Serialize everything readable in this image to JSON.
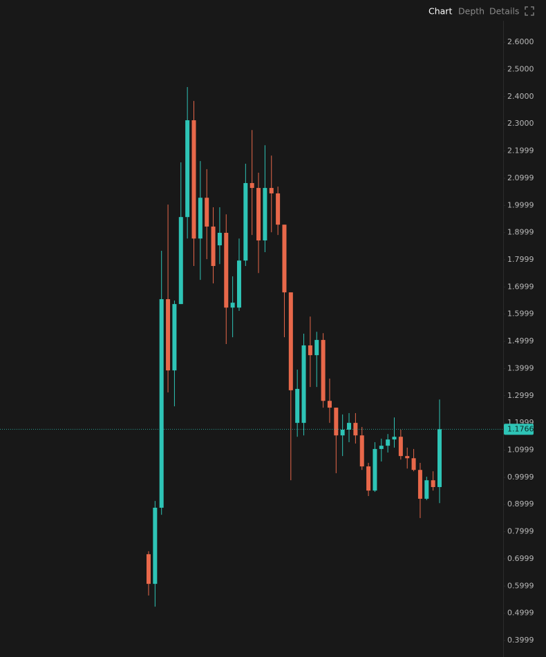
{
  "toolbar": {
    "tabs": [
      "Chart",
      "Depth",
      "Details"
    ]
  },
  "chart_data": {
    "type": "candlestick",
    "categories": [
      null,
      null,
      null,
      null,
      null,
      null,
      null,
      null,
      null,
      null,
      null,
      null,
      null,
      null,
      null,
      null,
      null,
      null,
      null,
      null,
      null,
      null,
      null,
      null,
      null,
      null,
      null,
      null,
      null,
      null,
      null,
      null,
      null,
      null,
      null,
      null,
      null,
      null,
      null,
      null,
      null,
      null,
      null,
      null,
      null,
      null
    ],
    "open": [
      0.717,
      0.608,
      0.888,
      1.655,
      1.393,
      1.637,
      1.957,
      2.313,
      1.878,
      2.028,
      1.922,
      1.853,
      1.899,
      1.624,
      1.624,
      1.797,
      2.082,
      2.064,
      1.871,
      2.064,
      2.044,
      1.929,
      1.68,
      1.2,
      1.2,
      1.485,
      1.449,
      1.505,
      1.281,
      1.256,
      1.154,
      1.175,
      1.2,
      1.154,
      1.04,
      0.951,
      1.104,
      1.116,
      1.139,
      1.149,
      1.078,
      1.07,
      1.027,
      0.921,
      0.989,
      0.964
    ],
    "high": [
      0.728,
      0.913,
      1.833,
      2.003,
      1.65,
      2.158,
      2.435,
      2.384,
      2.163,
      2.133,
      1.993,
      1.993,
      1.967,
      1.739,
      1.878,
      2.153,
      2.277,
      2.12,
      2.221,
      2.183,
      2.069,
      1.929,
      1.68,
      1.396,
      1.528,
      1.591,
      1.535,
      1.53,
      1.363,
      1.256,
      1.231,
      1.236,
      1.236,
      1.185,
      1.053,
      1.129,
      1.142,
      1.159,
      1.22,
      1.175,
      1.109,
      1.104,
      1.053,
      1.002,
      1.022,
      1.286
    ],
    "low": [
      0.565,
      0.524,
      0.862,
      1.312,
      1.261,
      1.637,
      1.878,
      1.777,
      1.726,
      1.802,
      1.713,
      1.784,
      1.49,
      1.515,
      1.612,
      1.777,
      1.891,
      1.751,
      1.828,
      1.901,
      1.891,
      1.515,
      0.989,
      1.149,
      1.154,
      1.332,
      1.332,
      1.256,
      1.2,
      1.015,
      1.078,
      1.129,
      1.124,
      1.027,
      0.931,
      0.946,
      1.058,
      1.091,
      1.109,
      1.065,
      1.032,
      1.022,
      0.85,
      0.916,
      0.951,
      0.905
    ],
    "close": [
      0.608,
      0.888,
      1.655,
      1.393,
      1.637,
      1.957,
      2.313,
      1.878,
      2.028,
      1.922,
      1.777,
      1.899,
      1.624,
      1.642,
      1.797,
      2.082,
      2.064,
      1.871,
      2.064,
      2.044,
      1.929,
      1.68,
      1.32,
      1.325,
      1.485,
      1.449,
      1.505,
      1.281,
      1.256,
      1.154,
      1.175,
      1.2,
      1.154,
      1.04,
      0.951,
      1.104,
      1.116,
      1.139,
      1.149,
      1.078,
      1.07,
      1.027,
      0.921,
      0.989,
      0.964,
      1.1766
    ],
    "up_color": "#2ec4b6",
    "down_color": "#e8684a",
    "ylim": [
      0.339,
      2.679
    ],
    "yticks": [
      {
        "value": 2.6,
        "label": "2.6000"
      },
      {
        "value": 2.5,
        "label": "2.5000"
      },
      {
        "value": 2.4,
        "label": "2.4000"
      },
      {
        "value": 2.3,
        "label": "2.3000"
      },
      2.1999,
      2.0999,
      1.9999,
      1.8999,
      1.7999,
      1.6999,
      1.5999,
      1.4999,
      1.3999,
      1.2999,
      1.1999,
      1.0999,
      0.9999,
      0.8999,
      0.7999,
      0.6999,
      0.5999,
      0.4999,
      0.3999
    ],
    "last_price": 1.1766
  }
}
